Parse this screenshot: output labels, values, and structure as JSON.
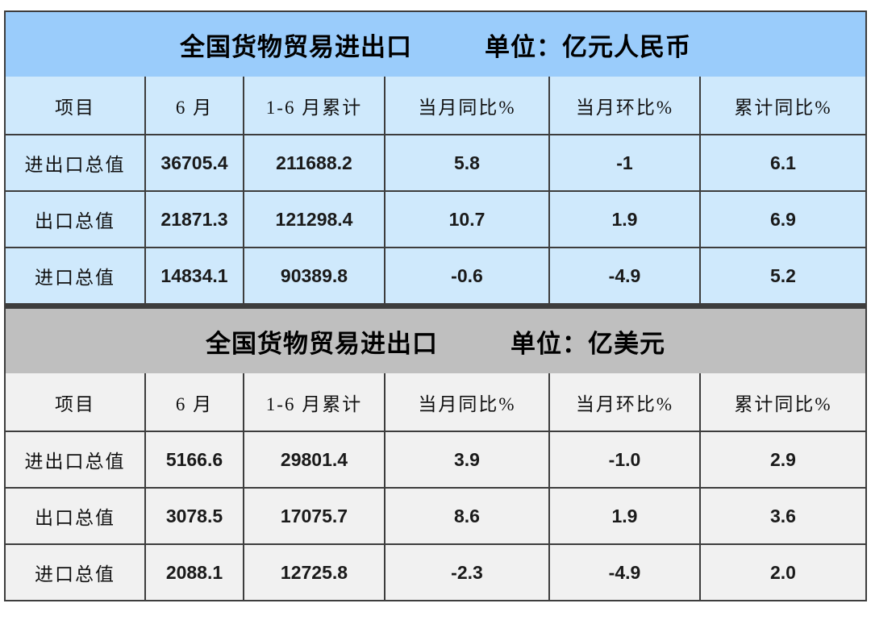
{
  "colors": {
    "banner_blue": "#9accfb",
    "cell_blue": "#cfe9fc",
    "banner_gray": "#bfbfbf",
    "cell_gray": "#f1f1f1",
    "border": "#3d3d3d"
  },
  "chart_data": [
    {
      "type": "table",
      "title": "全国货物贸易进出口",
      "unit": "单位：亿元人民币",
      "columns": [
        "项目",
        "6 月",
        "1-6 月累计",
        "当月同比%",
        "当月环比%",
        "累计同比%"
      ],
      "rows": [
        {
          "label": "进出口总值",
          "values": [
            "36705.4",
            "211688.2",
            "5.8",
            "-1",
            "6.1"
          ]
        },
        {
          "label": "出口总值",
          "values": [
            "21871.3",
            "121298.4",
            "10.7",
            "1.9",
            "6.9"
          ]
        },
        {
          "label": "进口总值",
          "values": [
            "14834.1",
            "90389.8",
            "-0.6",
            "-4.9",
            "5.2"
          ]
        }
      ]
    },
    {
      "type": "table",
      "title": "全国货物贸易进出口",
      "unit": "单位：亿美元",
      "columns": [
        "项目",
        "6 月",
        "1-6 月累计",
        "当月同比%",
        "当月环比%",
        "累计同比%"
      ],
      "rows": [
        {
          "label": "进出口总值",
          "values": [
            "5166.6",
            "29801.4",
            "3.9",
            "-1.0",
            "2.9"
          ]
        },
        {
          "label": "出口总值",
          "values": [
            "3078.5",
            "17075.7",
            "8.6",
            "1.9",
            "3.6"
          ]
        },
        {
          "label": "进口总值",
          "values": [
            "2088.1",
            "12725.8",
            "-2.3",
            "-4.9",
            "2.0"
          ]
        }
      ]
    }
  ]
}
